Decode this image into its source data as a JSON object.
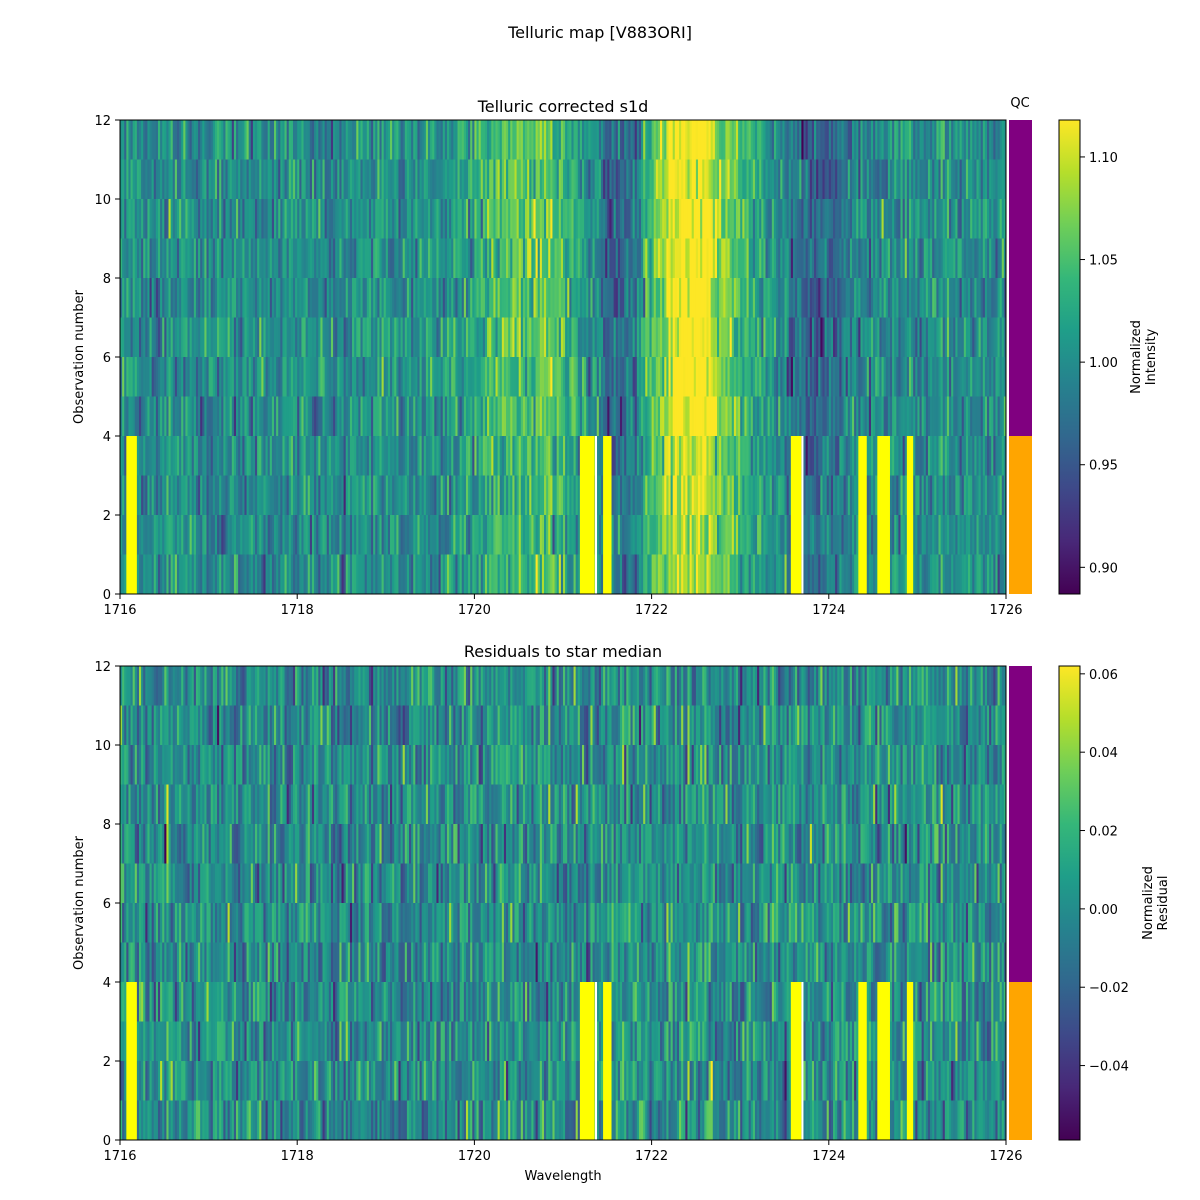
{
  "figure": {
    "title": "Telluric map [V883ORI]"
  },
  "colors": {
    "qc_pass": "#800080",
    "qc_fail": "#ffa500",
    "viridis": [
      "#440154",
      "#482878",
      "#3e4989",
      "#31688e",
      "#26828e",
      "#1f9e89",
      "#35b779",
      "#6ece58",
      "#b5de2b",
      "#fde725"
    ],
    "saturated": "#ffff00",
    "gap": "#ffffff"
  },
  "chart_data": [
    {
      "type": "heatmap",
      "title": "Telluric corrected s1d",
      "xlabel": "",
      "ylabel": "Observation number",
      "xlim": [
        1716,
        1726
      ],
      "ylim": [
        0,
        12
      ],
      "x_ticks": [
        "1716",
        "1718",
        "1720",
        "1722",
        "1724",
        "1726"
      ],
      "y_ticks": [
        "0",
        "2",
        "4",
        "6",
        "8",
        "10",
        "12"
      ],
      "n_rows": 12,
      "colorbar": {
        "label": "Normalized\nIntensity",
        "vmin": 0.887,
        "vmax": 1.118,
        "ticks": [
          "0.90",
          "0.95",
          "1.00",
          "1.05",
          "1.10"
        ],
        "tick_values": [
          0.9,
          0.95,
          1.0,
          1.05,
          1.1
        ]
      },
      "qc": {
        "label": "QC",
        "rows_fail": [
          0,
          4
        ],
        "rows_pass": [
          4,
          12
        ]
      },
      "features": [
        {
          "center": 1720.75,
          "width": 0.55,
          "amplitude": 0.06
        },
        {
          "center": 1721.65,
          "width": 0.3,
          "amplitude": -0.07
        },
        {
          "center": 1722.35,
          "width": 0.35,
          "amplitude": 0.1
        },
        {
          "center": 1722.7,
          "width": 0.45,
          "amplitude": 0.04
        },
        {
          "center": 1723.9,
          "width": 0.25,
          "amplitude": -0.04
        }
      ],
      "saturated_bands_rows_0_4": [
        [
          1716.08,
          1716.18
        ],
        [
          1721.2,
          1721.35
        ],
        [
          1721.45,
          1721.55
        ],
        [
          1723.58,
          1723.68
        ],
        [
          1724.33,
          1724.42
        ],
        [
          1724.55,
          1724.68
        ],
        [
          1724.88,
          1724.95
        ]
      ]
    },
    {
      "type": "heatmap",
      "title": "Residuals to star median",
      "xlabel": "Wavelength",
      "ylabel": "Observation number",
      "xlim": [
        1716,
        1726
      ],
      "ylim": [
        0,
        12
      ],
      "x_ticks": [
        "1716",
        "1718",
        "1720",
        "1722",
        "1724",
        "1726"
      ],
      "y_ticks": [
        "0",
        "2",
        "4",
        "6",
        "8",
        "10",
        "12"
      ],
      "n_rows": 12,
      "colorbar": {
        "label": "Normalized\nResidual",
        "vmin": -0.059,
        "vmax": 0.062,
        "ticks": [
          "−0.04",
          "−0.02",
          "0.00",
          "0.02",
          "0.04",
          "0.06"
        ],
        "tick_values": [
          -0.04,
          -0.02,
          0.0,
          0.02,
          0.04,
          0.06
        ]
      },
      "qc": {
        "label": "",
        "rows_fail": [
          0,
          4
        ],
        "rows_pass": [
          4,
          12
        ]
      },
      "features": [],
      "saturated_bands_rows_0_4": [
        [
          1716.08,
          1716.18
        ],
        [
          1721.2,
          1721.35
        ],
        [
          1721.45,
          1721.55
        ],
        [
          1723.58,
          1723.68
        ],
        [
          1724.33,
          1724.42
        ],
        [
          1724.55,
          1724.68
        ],
        [
          1724.88,
          1724.95
        ]
      ]
    }
  ]
}
